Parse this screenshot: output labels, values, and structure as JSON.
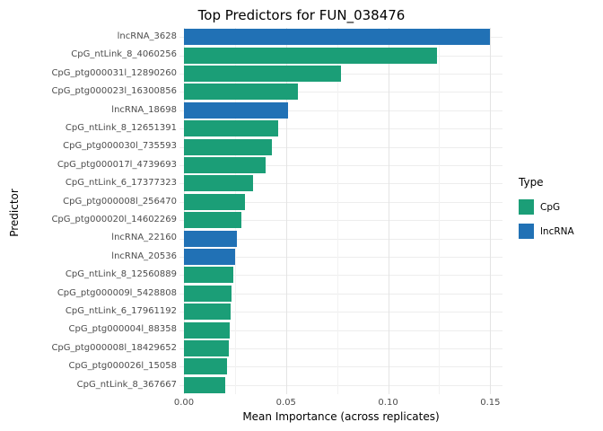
{
  "chart_data": {
    "type": "bar",
    "orientation": "horizontal",
    "title": "Top Predictors for FUN_038476",
    "xlabel": "Mean Importance (across replicates)",
    "ylabel": "Predictor",
    "xlim": [
      0,
      0.156
    ],
    "xticks": [
      0,
      0.05,
      0.1,
      0.15
    ],
    "xtick_labels": [
      "0.00",
      "0.05",
      "0.10",
      "0.15"
    ],
    "grid": true,
    "legend": {
      "title": "Type",
      "position": "right",
      "entries": [
        {
          "label": "CpG",
          "color": "#1b9e77"
        },
        {
          "label": "lncRNA",
          "color": "#2171b5"
        }
      ]
    },
    "bars": [
      {
        "label": "lncRNA_3628",
        "type": "lncRNA",
        "value": 0.15
      },
      {
        "label": "CpG_ntLink_8_4060256",
        "type": "CpG",
        "value": 0.124
      },
      {
        "label": "CpG_ptg000031l_12890260",
        "type": "CpG",
        "value": 0.077
      },
      {
        "label": "CpG_ptg000023l_16300856",
        "type": "CpG",
        "value": 0.056
      },
      {
        "label": "lncRNA_18698",
        "type": "lncRNA",
        "value": 0.051
      },
      {
        "label": "CpG_ntLink_8_12651391",
        "type": "CpG",
        "value": 0.046
      },
      {
        "label": "CpG_ptg000030l_735593",
        "type": "CpG",
        "value": 0.043
      },
      {
        "label": "CpG_ptg000017l_4739693",
        "type": "CpG",
        "value": 0.04
      },
      {
        "label": "CpG_ntLink_6_17377323",
        "type": "CpG",
        "value": 0.034
      },
      {
        "label": "CpG_ptg000008l_256470",
        "type": "CpG",
        "value": 0.03
      },
      {
        "label": "CpG_ptg000020l_14602269",
        "type": "CpG",
        "value": 0.028
      },
      {
        "label": "lncRNA_22160",
        "type": "lncRNA",
        "value": 0.026
      },
      {
        "label": "lncRNA_20536",
        "type": "lncRNA",
        "value": 0.025
      },
      {
        "label": "CpG_ntLink_8_12560889",
        "type": "CpG",
        "value": 0.024
      },
      {
        "label": "CpG_ptg000009l_5428808",
        "type": "CpG",
        "value": 0.0235
      },
      {
        "label": "CpG_ntLink_6_17961192",
        "type": "CpG",
        "value": 0.023
      },
      {
        "label": "CpG_ptg000004l_88358",
        "type": "CpG",
        "value": 0.0225
      },
      {
        "label": "CpG_ptg000008l_18429652",
        "type": "CpG",
        "value": 0.022
      },
      {
        "label": "CpG_ptg000026l_15058",
        "type": "CpG",
        "value": 0.021
      },
      {
        "label": "CpG_ntLink_8_367667",
        "type": "CpG",
        "value": 0.02
      }
    ]
  }
}
